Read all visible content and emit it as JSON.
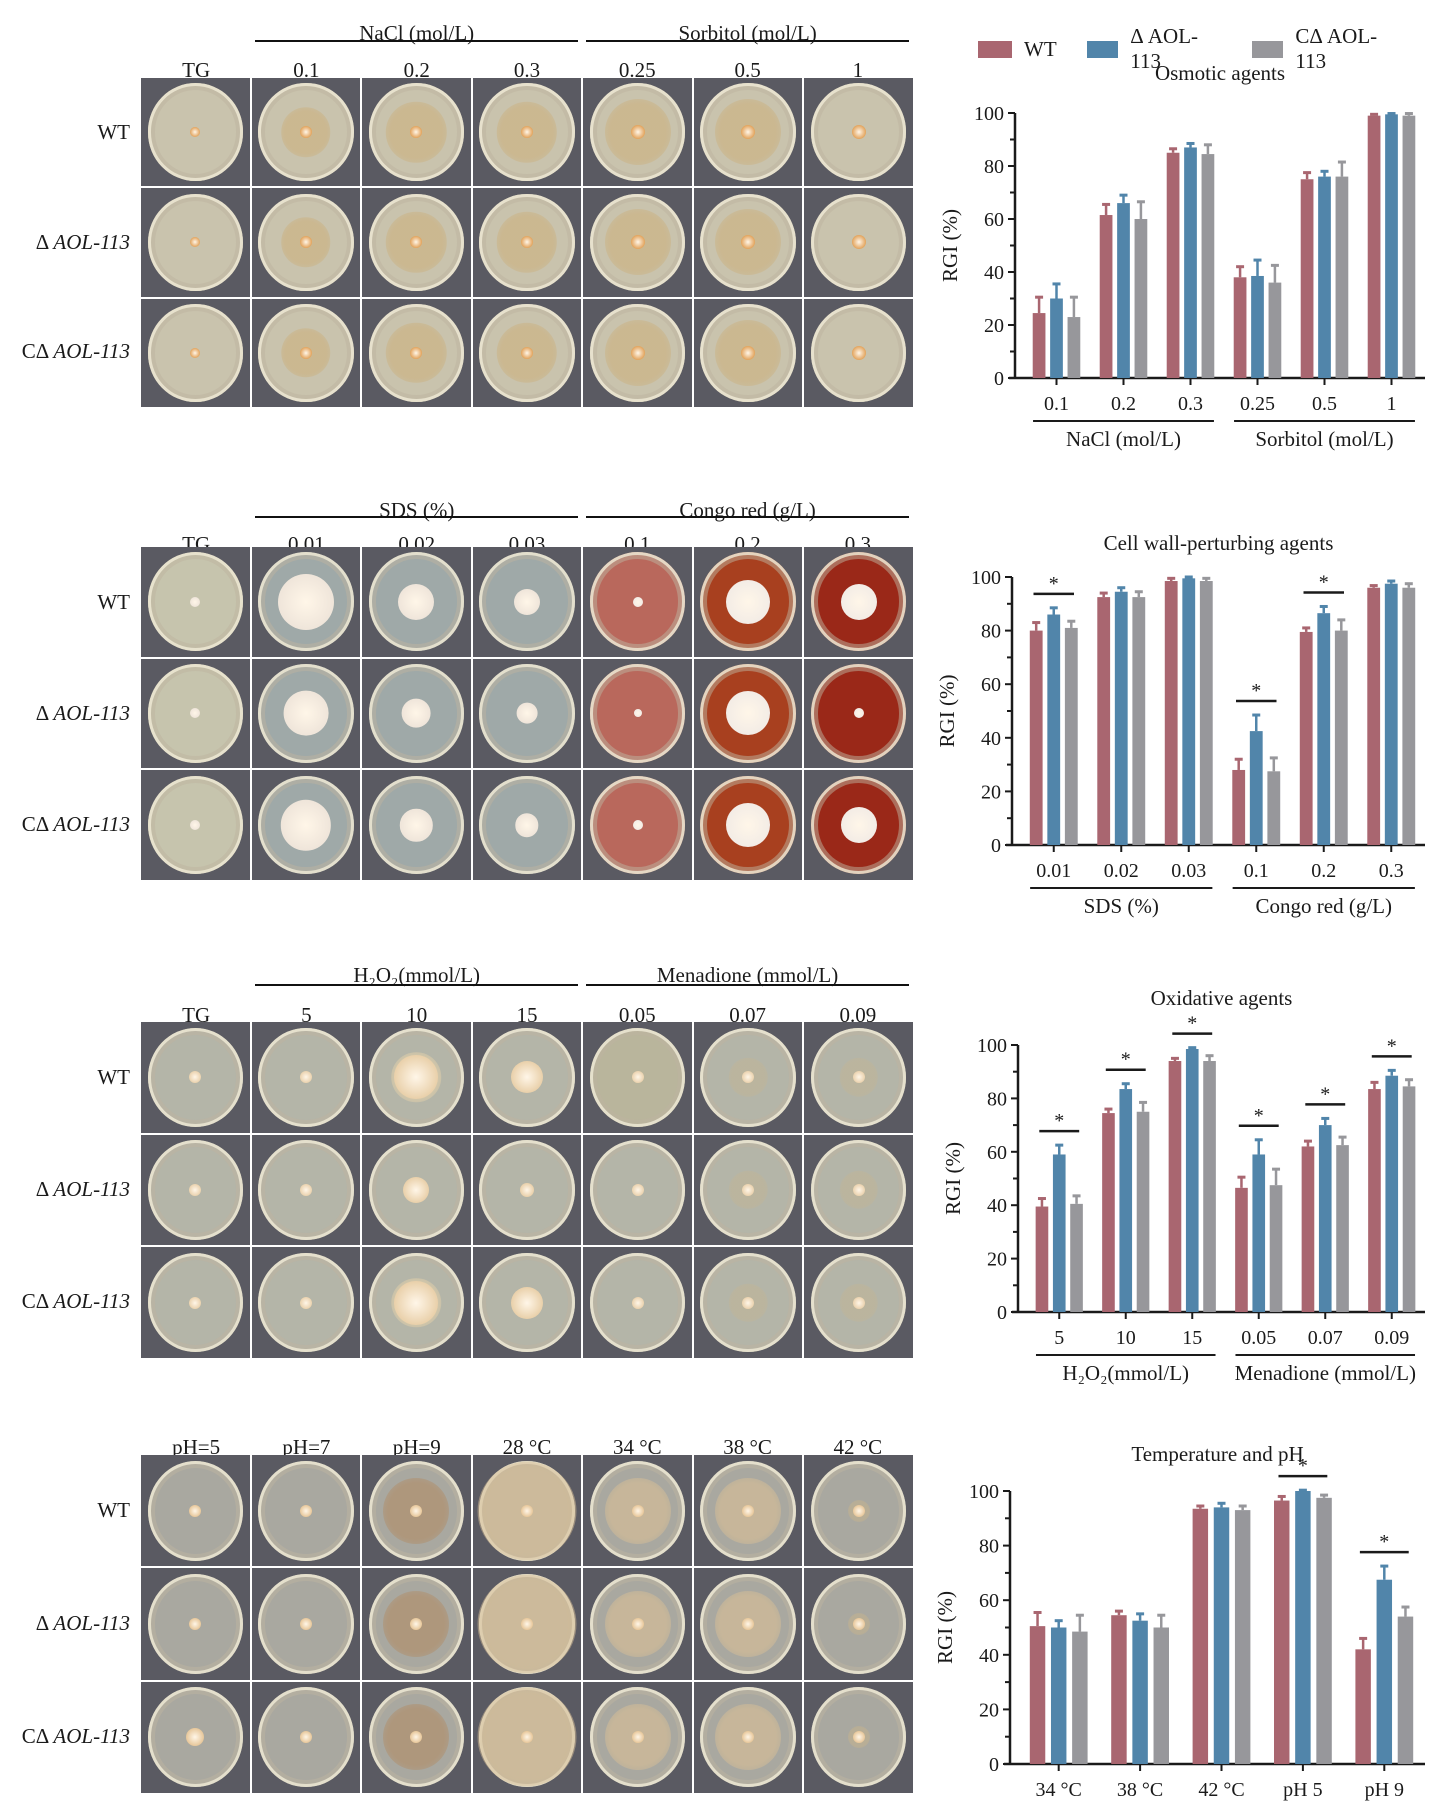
{
  "colors": {
    "wt": "#a96670",
    "mutant": "#5185aa",
    "complement": "#97979b"
  },
  "legend": [
    {
      "label": "WT",
      "key": "wt"
    },
    {
      "label": "Δ AOL-113",
      "key": "mutant"
    },
    {
      "label": "CΔ AOL-113",
      "key": "complement"
    }
  ],
  "strains": [
    "WT",
    "Δ",
    "CΔ"
  ],
  "strain_gene": "AOL-113",
  "panels": [
    {
      "groups": [
        {
          "title": "NaCl (mol/L)",
          "span": [
            1,
            3
          ]
        },
        {
          "title": "Sorbitol (mol/L)",
          "span": [
            4,
            6
          ]
        }
      ],
      "columns": [
        "TG",
        "0.1",
        "0.2",
        "0.3",
        "0.25",
        "0.5",
        "1"
      ],
      "tint": "osmotic"
    },
    {
      "groups": [
        {
          "title": "SDS (%)",
          "span": [
            1,
            3
          ]
        },
        {
          "title": "Congo red (g/L)",
          "span": [
            4,
            6
          ]
        }
      ],
      "columns": [
        "TG",
        "0.01",
        "0.02",
        "0.03",
        "0.1",
        "0.2",
        "0.3"
      ],
      "tint": "cellwall"
    },
    {
      "groups": [
        {
          "title": "H₂O₂(mmol/L)",
          "span": [
            1,
            3
          ]
        },
        {
          "title": "Menadione (mmol/L)",
          "span": [
            4,
            6
          ]
        }
      ],
      "columns": [
        "TG",
        "5",
        "10",
        "15",
        "0.05",
        "0.07",
        "0.09"
      ],
      "tint": "oxidative"
    },
    {
      "groups": [],
      "columns": [
        "pH=5",
        "pH=7",
        "pH=9",
        "28 °C",
        "34 °C",
        "38 °C",
        "42 °C"
      ],
      "tint": "temp"
    }
  ],
  "chart_data": [
    {
      "type": "bar",
      "title": "Osmotic agents",
      "ylabel": "RGI (%)",
      "xlabel": "",
      "ylim": [
        0,
        100
      ],
      "yticks": [
        0,
        20,
        40,
        60,
        80,
        100
      ],
      "categories": [
        "0.1",
        "0.2",
        "0.3",
        "0.25",
        "0.5",
        "1"
      ],
      "category_groups": [
        {
          "label": "NaCl (mol/L)",
          "range": [
            0,
            2
          ]
        },
        {
          "label": "Sorbitol (mol/L)",
          "range": [
            3,
            5
          ]
        }
      ],
      "series": [
        {
          "name": "WT",
          "values": [
            24.5,
            61.5,
            85,
            38,
            75,
            99
          ],
          "errors": [
            6,
            4,
            1.5,
            4,
            2.5,
            0.5
          ]
        },
        {
          "name": "Δ AOL-113",
          "values": [
            30,
            66,
            87,
            38.5,
            76,
            99.5
          ],
          "errors": [
            5.5,
            3,
            1.5,
            6,
            2,
            0.3
          ]
        },
        {
          "name": "CΔ AOL-113",
          "values": [
            23,
            60,
            84.5,
            36,
            76,
            99
          ],
          "errors": [
            7.5,
            6.5,
            3.5,
            6.5,
            5.5,
            0.8
          ]
        }
      ],
      "significance": []
    },
    {
      "type": "bar",
      "title": "Cell wall-perturbing agents",
      "ylabel": "RGI (%)",
      "xlabel": "",
      "ylim": [
        0,
        100
      ],
      "yticks": [
        0,
        20,
        40,
        60,
        80,
        100
      ],
      "categories": [
        "0.01",
        "0.02",
        "0.03",
        "0.1",
        "0.2",
        "0.3"
      ],
      "category_groups": [
        {
          "label": "SDS (%)",
          "range": [
            0,
            2
          ]
        },
        {
          "label": "Congo red (g/L)",
          "range": [
            3,
            5
          ]
        }
      ],
      "series": [
        {
          "name": "WT",
          "values": [
            80,
            92.5,
            98.5,
            28,
            79.5,
            96
          ],
          "errors": [
            3,
            1.5,
            1,
            4,
            1.5,
            0.8
          ]
        },
        {
          "name": "Δ AOL-113",
          "values": [
            86,
            94.5,
            99.5,
            42.5,
            86.5,
            97.5
          ],
          "errors": [
            2.5,
            1.5,
            0.5,
            6,
            2.5,
            1
          ]
        },
        {
          "name": "CΔ AOL-113",
          "values": [
            81,
            92.5,
            98.5,
            27.5,
            80,
            96
          ],
          "errors": [
            2.5,
            2,
            1,
            5,
            4,
            1.5
          ]
        }
      ],
      "significance": [
        {
          "category": 0,
          "label": "*"
        },
        {
          "category": 3,
          "label": "*"
        },
        {
          "category": 4,
          "label": "*"
        }
      ]
    },
    {
      "type": "bar",
      "title": "Oxidative agents",
      "ylabel": "RGI (%)",
      "xlabel": "",
      "ylim": [
        0,
        100
      ],
      "yticks": [
        0,
        20,
        40,
        60,
        80,
        100
      ],
      "categories": [
        "5",
        "10",
        "15",
        "0.05",
        "0.07",
        "0.09"
      ],
      "category_groups": [
        {
          "label": "H₂O₂(mmol/L)",
          "range": [
            0,
            2
          ]
        },
        {
          "label": "Menadione (mmol/L)",
          "range": [
            3,
            5
          ]
        }
      ],
      "series": [
        {
          "name": "WT",
          "values": [
            39.5,
            74.5,
            94,
            46.5,
            62,
            83.5
          ],
          "errors": [
            3,
            1.5,
            1,
            4,
            2,
            2.5
          ]
        },
        {
          "name": "Δ AOL-113",
          "values": [
            59,
            83.5,
            98.5,
            59,
            70,
            88.5
          ],
          "errors": [
            3.5,
            2,
            0.5,
            5.5,
            2.5,
            2
          ]
        },
        {
          "name": "CΔ AOL-113",
          "values": [
            40.5,
            75,
            94,
            47.5,
            62.5,
            84.5
          ],
          "errors": [
            3,
            3.5,
            2,
            6,
            3,
            2.5
          ]
        }
      ],
      "significance": [
        {
          "category": 0,
          "label": "*"
        },
        {
          "category": 1,
          "label": "*"
        },
        {
          "category": 2,
          "label": "*"
        },
        {
          "category": 3,
          "label": "*"
        },
        {
          "category": 4,
          "label": "*"
        },
        {
          "category": 5,
          "label": "*"
        }
      ]
    },
    {
      "type": "bar",
      "title": "Temperature and pH",
      "ylabel": "RGI (%)",
      "xlabel": "",
      "ylim": [
        0,
        100
      ],
      "yticks": [
        0,
        20,
        40,
        60,
        80,
        100
      ],
      "categories": [
        "34 °C",
        "38 °C",
        "42 °C",
        "pH 5",
        "pH 9"
      ],
      "category_groups": [],
      "series": [
        {
          "name": "WT",
          "values": [
            50.5,
            54.5,
            93.5,
            96.5,
            42
          ],
          "errors": [
            5,
            1.5,
            1,
            1.5,
            4
          ]
        },
        {
          "name": "Δ AOL-113",
          "values": [
            50,
            52.5,
            94,
            100,
            67.5
          ],
          "errors": [
            2.5,
            2.5,
            1.5,
            0.3,
            5
          ]
        },
        {
          "name": "CΔ AOL-113",
          "values": [
            48.5,
            50,
            93,
            97.5,
            54
          ],
          "errors": [
            6,
            4.5,
            1.5,
            1,
            3.5
          ]
        }
      ],
      "significance": [
        {
          "category": 3,
          "label": "*"
        },
        {
          "category": 4,
          "label": "*"
        }
      ]
    }
  ]
}
